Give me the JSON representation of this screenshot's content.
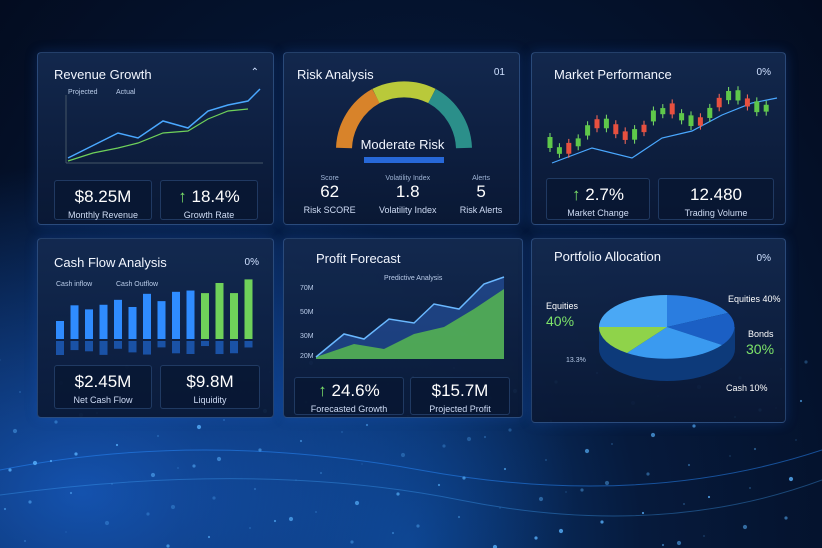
{
  "panels": [
    {
      "title": "Revenue Growth",
      "legend": [
        "Projected",
        "Actual"
      ],
      "stats": [
        {
          "value": "$8.25M",
          "label": "Monthly Revenue"
        },
        {
          "value": "18.4%",
          "label": "Growth Rate"
        }
      ]
    },
    {
      "title": "Risk Analysis",
      "badge": "01",
      "gauge_label": "Moderate Risk",
      "stats": [
        {
          "caption": "Score",
          "value": "62",
          "label": "Risk SCORE"
        },
        {
          "caption": "Volatility Index",
          "value": "1.8",
          "label": "Volatility Index"
        },
        {
          "caption": "Alerts",
          "value": "5",
          "label": "Risk Alerts"
        }
      ]
    },
    {
      "title": "Market Performance",
      "badge": "0%",
      "stats": [
        {
          "value": "2.7%",
          "label": "Market Change"
        },
        {
          "value": "12.480",
          "label": "Trading Volume"
        }
      ]
    },
    {
      "title": "Cash Flow Analysis",
      "badge": "0%",
      "legend": [
        "Cash inflow",
        "Cash Outflow"
      ],
      "stats": [
        {
          "value": "$2.45M",
          "label": "Net Cash Flow"
        },
        {
          "value": "$9.8M",
          "label": "Liquidity"
        }
      ]
    },
    {
      "title": "Profit Forecast",
      "legend": [
        "Predictive Analysis"
      ],
      "axis_labels": [
        "70M",
        "50M",
        "30M",
        "20M"
      ],
      "stats": [
        {
          "value": "24.6%",
          "label": "Forecasted Growth"
        },
        {
          "value": "$15.7M",
          "label": "Projected Profit"
        }
      ]
    },
    {
      "title": "Portfolio Allocation",
      "badge": "0%",
      "labels": [
        "Equities 40%",
        "Equities",
        "40%",
        "Bonds",
        "30%",
        "Cash 10%",
        "13.3%"
      ]
    }
  ]
}
